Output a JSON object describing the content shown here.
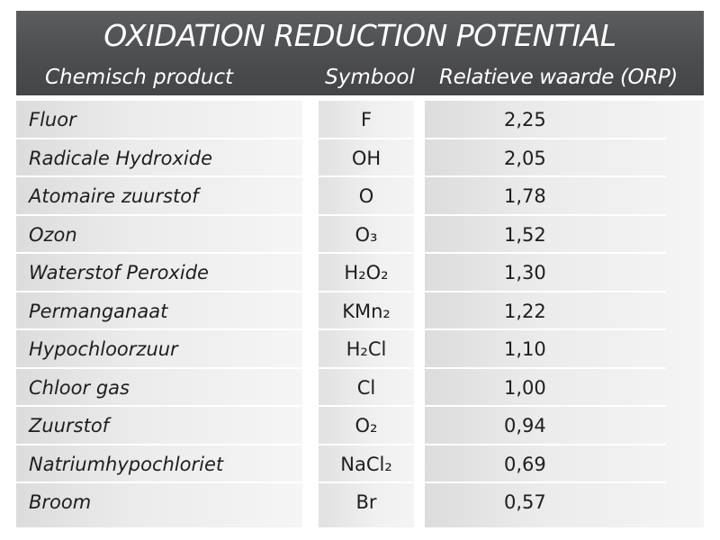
{
  "title": "OXIDATION REDUCTION POTENTIAL",
  "columns": {
    "product": "Chemisch product",
    "symbol": "Symbool",
    "value": "Relatieve waarde (ORP)"
  },
  "rows": [
    {
      "product": "Fluor",
      "symbol": "F",
      "value": "2,25"
    },
    {
      "product": "Radicale Hydroxide",
      "symbol": "OH",
      "value": "2,05"
    },
    {
      "product": "Atomaire zuurstof",
      "symbol": "O",
      "value": "1,78"
    },
    {
      "product": "Ozon",
      "symbol": "O₃",
      "value": "1,52"
    },
    {
      "product": "Waterstof Peroxide",
      "symbol": "H₂O₂",
      "value": "1,30"
    },
    {
      "product": "Permanganaat",
      "symbol": "KMn₂",
      "value": "1,22"
    },
    {
      "product": "Hypochloorzuur",
      "symbol": "H₂Cl",
      "value": "1,10"
    },
    {
      "product": "Chloor gas",
      "symbol": "Cl",
      "value": "1,00"
    },
    {
      "product": "Zuurstof",
      "symbol": "O₂",
      "value": "0,94"
    },
    {
      "product": "Natriumhypochloriet",
      "symbol": "NaCl₂",
      "value": "0,69"
    },
    {
      "product": "Broom",
      "symbol": "Br",
      "value": "0,57"
    }
  ],
  "colors": {
    "header_bg": "#4c4d4f",
    "header_text": "#ffffff",
    "cell_bg": "#ebebeb",
    "cell_text": "#1e1e1e"
  }
}
